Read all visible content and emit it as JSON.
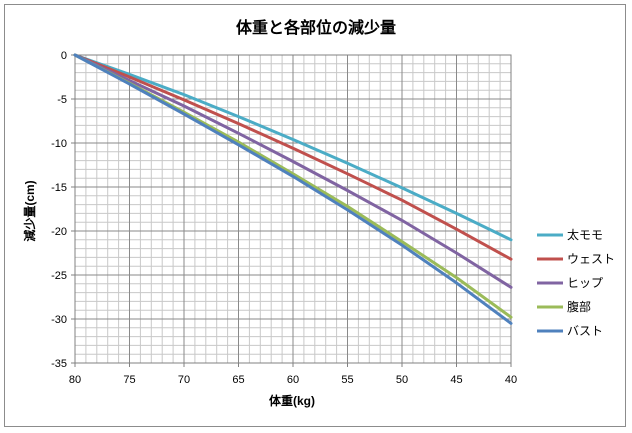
{
  "chart_data": {
    "type": "line",
    "title": "体重と各部位の減少量",
    "xlabel": "体重(kg)",
    "ylabel": "減少量(cm)",
    "x": [
      80,
      75,
      70,
      65,
      60,
      55,
      50,
      45,
      40
    ],
    "xlim": [
      80,
      40
    ],
    "ylim": [
      -35,
      0
    ],
    "x_ticks": [
      80,
      75,
      70,
      65,
      60,
      55,
      50,
      45,
      40
    ],
    "y_ticks": [
      0,
      -5,
      -10,
      -15,
      -20,
      -25,
      -30,
      -35
    ],
    "grid": true,
    "legend_position": "right",
    "series": [
      {
        "name": "太モモ",
        "color": "#4bacc6",
        "values": [
          0,
          -2.2,
          -4.5,
          -7.0,
          -9.6,
          -12.3,
          -15.1,
          -18.0,
          -21.0
        ]
      },
      {
        "name": "ウェスト",
        "color": "#c0504d",
        "values": [
          0,
          -2.5,
          -5.1,
          -7.8,
          -10.6,
          -13.5,
          -16.5,
          -19.8,
          -23.2
        ]
      },
      {
        "name": "ヒップ",
        "color": "#8064a2",
        "values": [
          0,
          -2.9,
          -5.8,
          -8.9,
          -12.1,
          -15.4,
          -18.8,
          -22.5,
          -26.4
        ]
      },
      {
        "name": "腹部",
        "color": "#9bbb59",
        "values": [
          0,
          -3.2,
          -6.5,
          -9.9,
          -13.5,
          -17.2,
          -21.2,
          -25.3,
          -29.8
        ]
      },
      {
        "name": "バスト",
        "color": "#4f81bd",
        "values": [
          0,
          -3.3,
          -6.7,
          -10.2,
          -13.8,
          -17.6,
          -21.6,
          -25.9,
          -30.5
        ]
      }
    ]
  }
}
